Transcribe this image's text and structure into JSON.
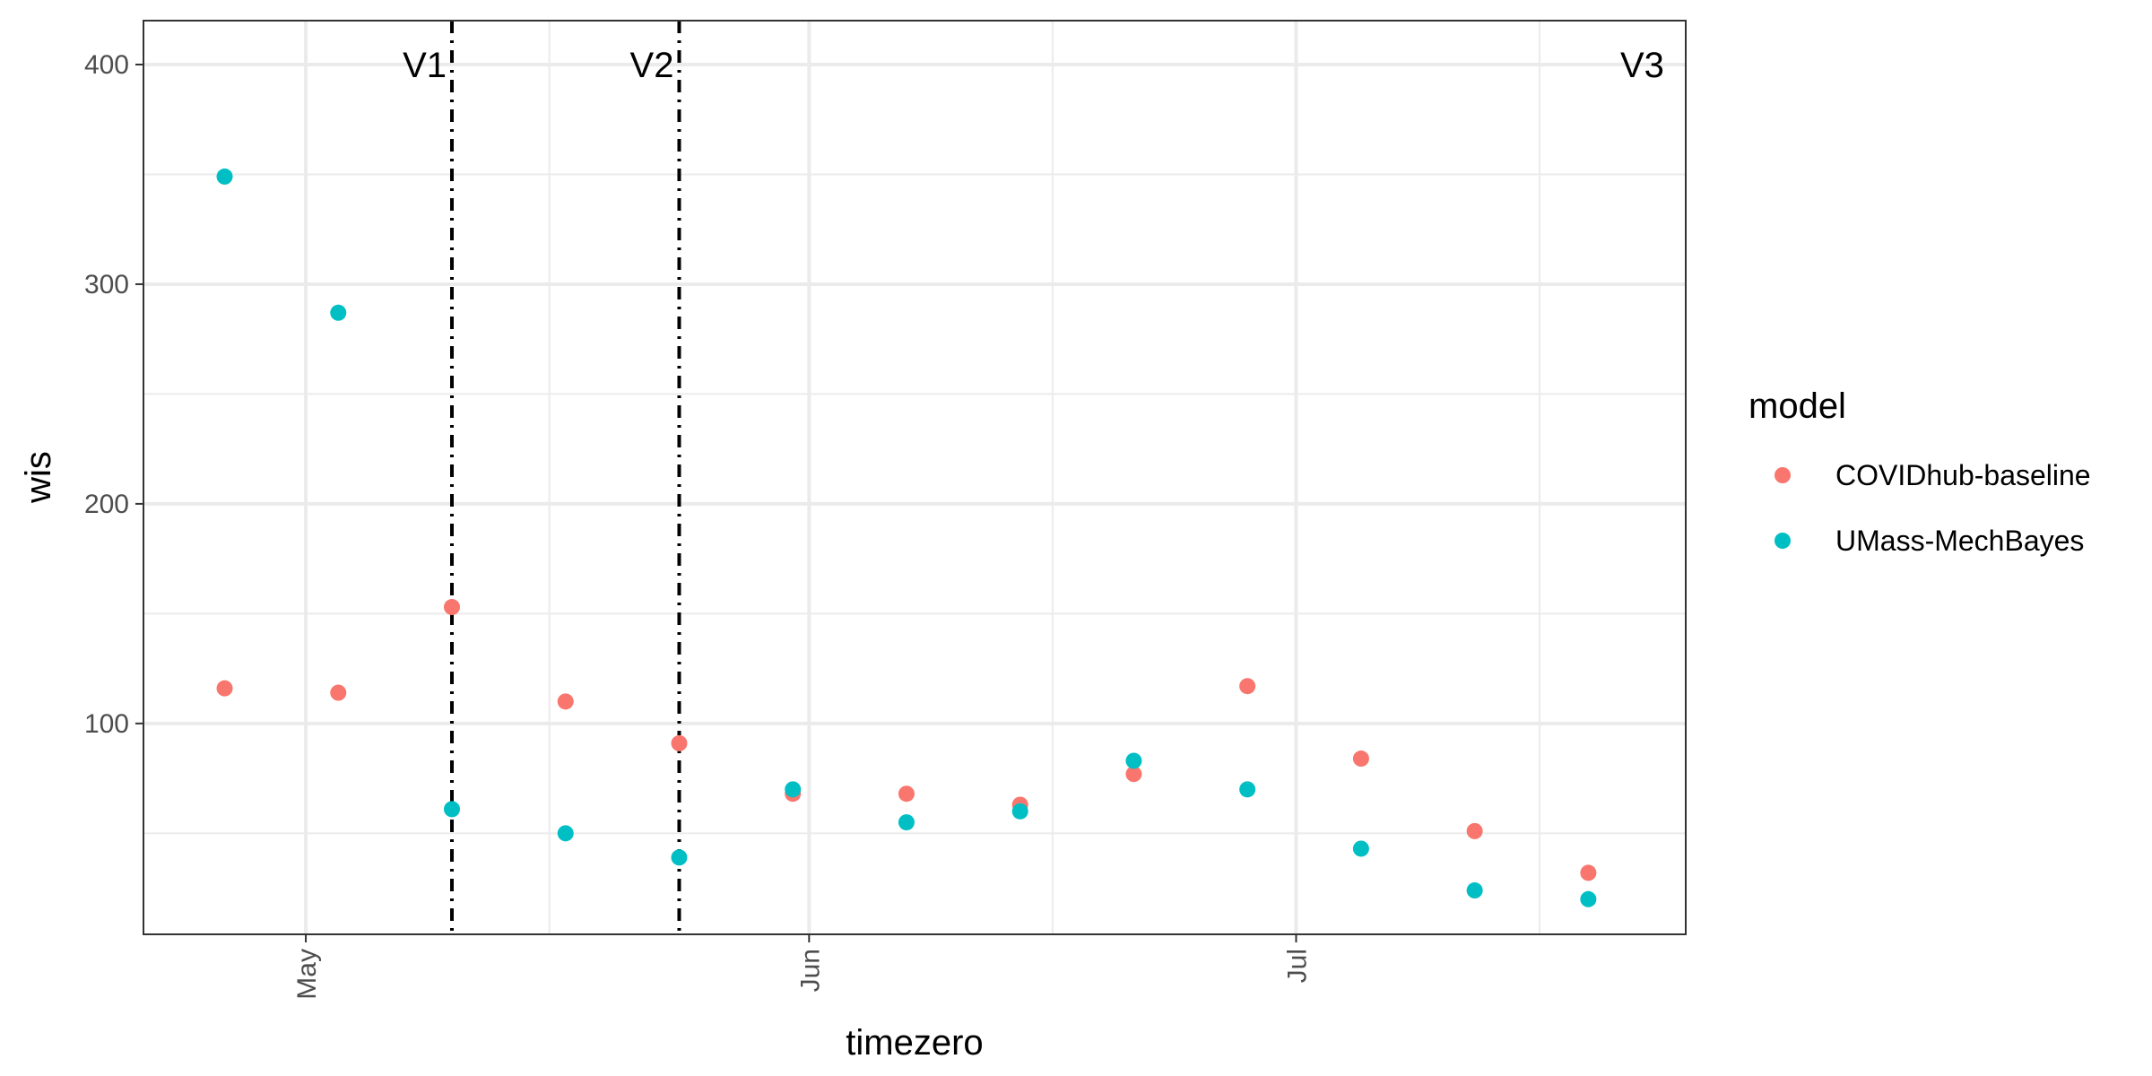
{
  "chart_data": {
    "type": "scatter",
    "title": "",
    "xlabel": "timezero",
    "ylabel": "wis",
    "x_tick_labels": [
      "May",
      "Jun",
      "Jul"
    ],
    "x_ticks": [
      "2020-05-01",
      "2020-06-01",
      "2020-07-01"
    ],
    "x_minor_ticks": [
      "2020-05-16",
      "2020-06-16",
      "2020-07-16"
    ],
    "xlim": [
      "2020-04-21",
      "2020-07-25"
    ],
    "y_ticks": [
      100,
      200,
      300,
      400
    ],
    "y_minor_ticks": [
      50,
      150,
      250,
      350
    ],
    "ylim": [
      4,
      420
    ],
    "grid": true,
    "legend": {
      "title": "model",
      "position": "right",
      "entries": [
        "COVIDhub-baseline",
        "UMass-MechBayes"
      ]
    },
    "vlines": [
      {
        "label": "V1",
        "x": "2020-05-10",
        "style": "dotdash"
      },
      {
        "label": "V2",
        "x": "2020-05-24",
        "style": "dotdash"
      },
      {
        "label": "V3",
        "x": "2020-07-24",
        "style": "none"
      }
    ],
    "series": [
      {
        "name": "COVIDhub-baseline",
        "color": "#F8766D",
        "points": [
          {
            "x": "2020-04-26",
            "y": 116
          },
          {
            "x": "2020-05-03",
            "y": 114
          },
          {
            "x": "2020-05-10",
            "y": 153
          },
          {
            "x": "2020-05-17",
            "y": 110
          },
          {
            "x": "2020-05-24",
            "y": 91
          },
          {
            "x": "2020-05-31",
            "y": 68
          },
          {
            "x": "2020-06-07",
            "y": 68
          },
          {
            "x": "2020-06-14",
            "y": 63
          },
          {
            "x": "2020-06-21",
            "y": 77
          },
          {
            "x": "2020-06-28",
            "y": 117
          },
          {
            "x": "2020-07-05",
            "y": 84
          },
          {
            "x": "2020-07-12",
            "y": 51
          },
          {
            "x": "2020-07-19",
            "y": 32
          }
        ]
      },
      {
        "name": "UMass-MechBayes",
        "color": "#00BFC4",
        "points": [
          {
            "x": "2020-04-26",
            "y": 349
          },
          {
            "x": "2020-05-03",
            "y": 287
          },
          {
            "x": "2020-05-10",
            "y": 61
          },
          {
            "x": "2020-05-17",
            "y": 50
          },
          {
            "x": "2020-05-24",
            "y": 39
          },
          {
            "x": "2020-05-31",
            "y": 70
          },
          {
            "x": "2020-06-07",
            "y": 55
          },
          {
            "x": "2020-06-14",
            "y": 60
          },
          {
            "x": "2020-06-21",
            "y": 83
          },
          {
            "x": "2020-06-28",
            "y": 70
          },
          {
            "x": "2020-07-05",
            "y": 43
          },
          {
            "x": "2020-07-12",
            "y": 24
          },
          {
            "x": "2020-07-19",
            "y": 20
          }
        ]
      }
    ]
  }
}
